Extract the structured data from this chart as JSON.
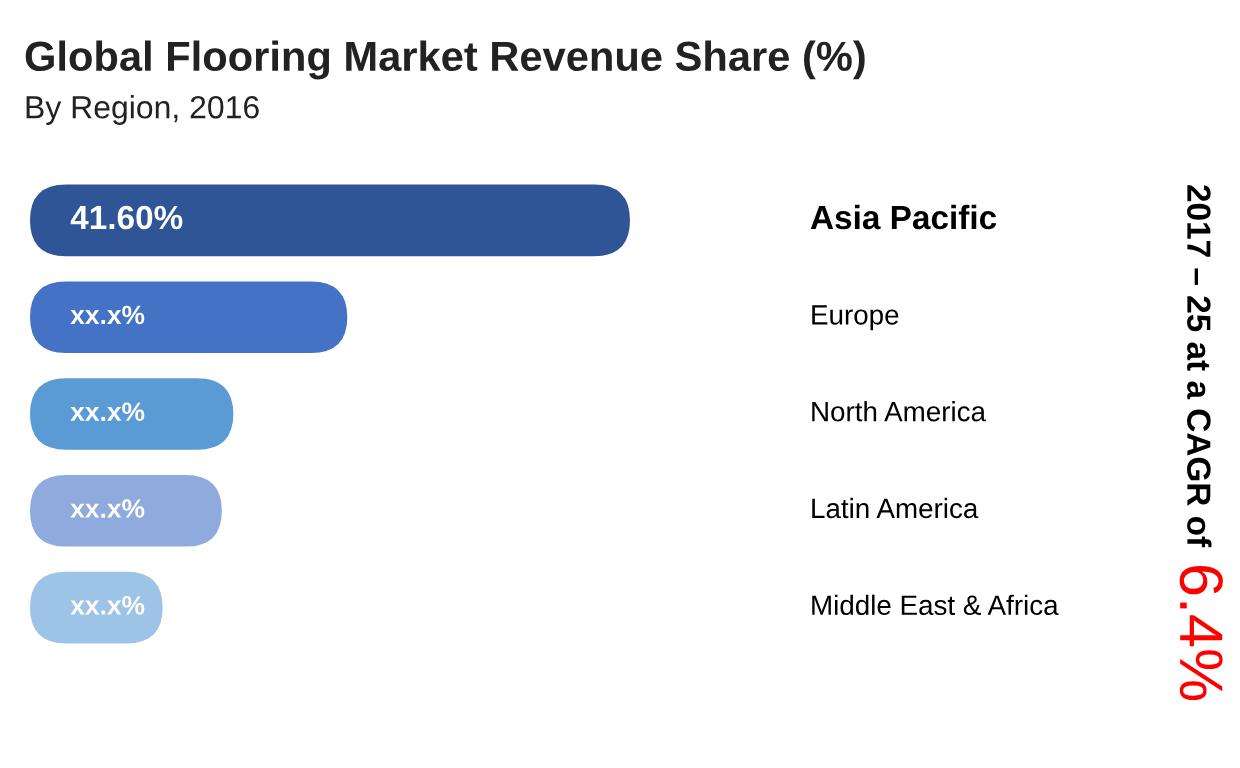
{
  "chart_data": {
    "type": "bar",
    "orientation": "horizontal",
    "title": "Global Flooring Market Revenue Share (%)",
    "subtitle": "By Region, 2016",
    "categories": [
      "Asia Pacific",
      "Europe",
      "North America",
      "Latin America",
      "Middle East & Africa"
    ],
    "values": [
      41.6,
      22.0,
      14.1,
      13.3,
      9.2
    ],
    "colors": [
      "#2f5597",
      "#4472c4",
      "#5b9bd5",
      "#8faadc",
      "#9dc3e6"
    ],
    "value_labels": [
      "41.60%",
      "xx.x%",
      "xx.x%",
      "xx.x%",
      "xx.x%"
    ],
    "annotations": [
      "2017 – 25 at a CAGR of ",
      "6.4%"
    ],
    "legend": false
  }
}
